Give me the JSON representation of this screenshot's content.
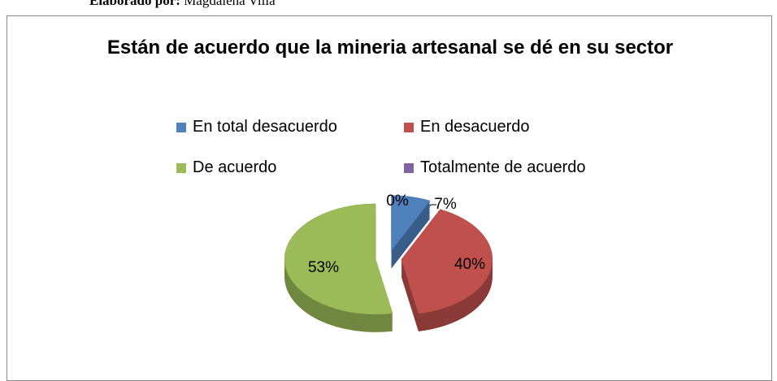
{
  "header": {
    "label": "Elaborado por:",
    "name": "Magdalena Villa"
  },
  "chart_data": {
    "type": "pie",
    "title": "Están de acuerdo que la mineria artesanal se dé en su sector",
    "categories": [
      "En total desacuerdo",
      "En desacuerdo",
      "De acuerdo",
      "Totalmente de acuerdo"
    ],
    "values": [
      7,
      40,
      53,
      0
    ],
    "value_labels": [
      "7%",
      "40%",
      "53%",
      "0%"
    ],
    "colors": [
      "#4f81bd",
      "#c0504d",
      "#9bbb59",
      "#8064a2"
    ],
    "legend": "top"
  }
}
